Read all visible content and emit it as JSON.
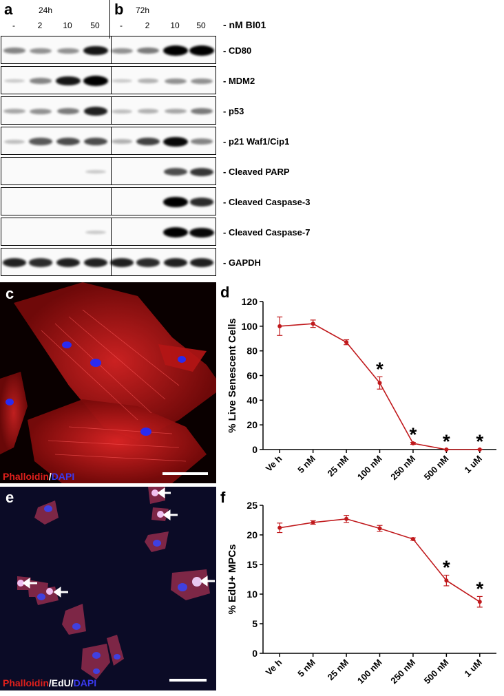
{
  "blots": {
    "panel_a": "a",
    "panel_b": "b",
    "time_a": "24h",
    "time_b": "72h",
    "concentrations": [
      "-",
      "2",
      "10",
      "50",
      "-",
      "2",
      "10",
      "50"
    ],
    "unit": "- nM BI01",
    "rows": [
      {
        "label": "- CD80",
        "bands": [
          0.35,
          0.3,
          0.3,
          0.85,
          0.3,
          0.4,
          1.0,
          1.0
        ]
      },
      {
        "label": "- MDM2",
        "bands": [
          0.05,
          0.35,
          0.85,
          1.0,
          0.05,
          0.15,
          0.3,
          0.3
        ]
      },
      {
        "label": "- p53",
        "bands": [
          0.2,
          0.3,
          0.4,
          0.8,
          0.1,
          0.15,
          0.2,
          0.4
        ]
      },
      {
        "label": "- p21 Waf1/Cip1",
        "bands": [
          0.1,
          0.55,
          0.6,
          0.6,
          0.15,
          0.65,
          0.9,
          0.35
        ]
      },
      {
        "label": "- Cleaved PARP",
        "bands": [
          0,
          0,
          0,
          0.05,
          0,
          0,
          0.6,
          0.7
        ]
      },
      {
        "label": "- Cleaved Caspase-3",
        "bands": [
          0,
          0,
          0,
          0,
          0,
          0,
          0.95,
          0.75
        ]
      },
      {
        "label": "- Cleaved Caspase-7",
        "bands": [
          0,
          0,
          0,
          0.05,
          0,
          0,
          1.0,
          0.9
        ]
      },
      {
        "label": "- GAPDH",
        "bands": [
          0.8,
          0.75,
          0.8,
          0.8,
          0.8,
          0.75,
          0.8,
          0.8
        ]
      }
    ]
  },
  "micro_c": {
    "letter": "c",
    "stain_1": "Phalloidin",
    "sep_1": "/",
    "stain_2": "DAPI",
    "colors": {
      "stain": "#e0201c",
      "nuclei": "#3a3af0"
    }
  },
  "micro_e": {
    "letter": "e",
    "stain_1": "Phalloidin",
    "sep_1": "/",
    "stain_2": "EdU",
    "sep_2": "/",
    "stain_3": "DAPI"
  },
  "chart_data": [
    {
      "type": "line",
      "panel": "d",
      "categories": [
        "Ve h",
        "5 nM",
        "25 nM",
        "100 nM",
        "250 nM",
        "500 nM",
        "1 uM"
      ],
      "values": [
        100,
        102,
        87,
        54,
        5,
        0,
        0
      ],
      "errors": [
        7.5,
        3,
        2,
        5,
        0.8,
        0.3,
        0.3
      ],
      "significant": [
        false,
        false,
        false,
        true,
        true,
        true,
        true
      ],
      "ylabel": "% Live Senescent Cells",
      "ylim": [
        0,
        120
      ],
      "yticks": [
        0,
        20,
        40,
        60,
        80,
        100,
        120
      ],
      "marker_symbol": "*",
      "color": "#c0191c"
    },
    {
      "type": "line",
      "panel": "f",
      "categories": [
        "Ve h",
        "5 nM",
        "25 nM",
        "100 nM",
        "250 nM",
        "500 nM",
        "1 uM"
      ],
      "values": [
        21.2,
        22.1,
        22.7,
        21.1,
        19.3,
        12.3,
        8.7
      ],
      "errors": [
        0.8,
        0.3,
        0.6,
        0.5,
        0.2,
        0.9,
        0.9
      ],
      "significant": [
        false,
        false,
        false,
        false,
        false,
        true,
        true
      ],
      "ylabel": "% EdU+ MPCs",
      "ylim": [
        0,
        25
      ],
      "yticks": [
        0,
        5,
        10,
        15,
        20,
        25
      ],
      "marker_symbol": "*",
      "color": "#c0191c"
    }
  ]
}
